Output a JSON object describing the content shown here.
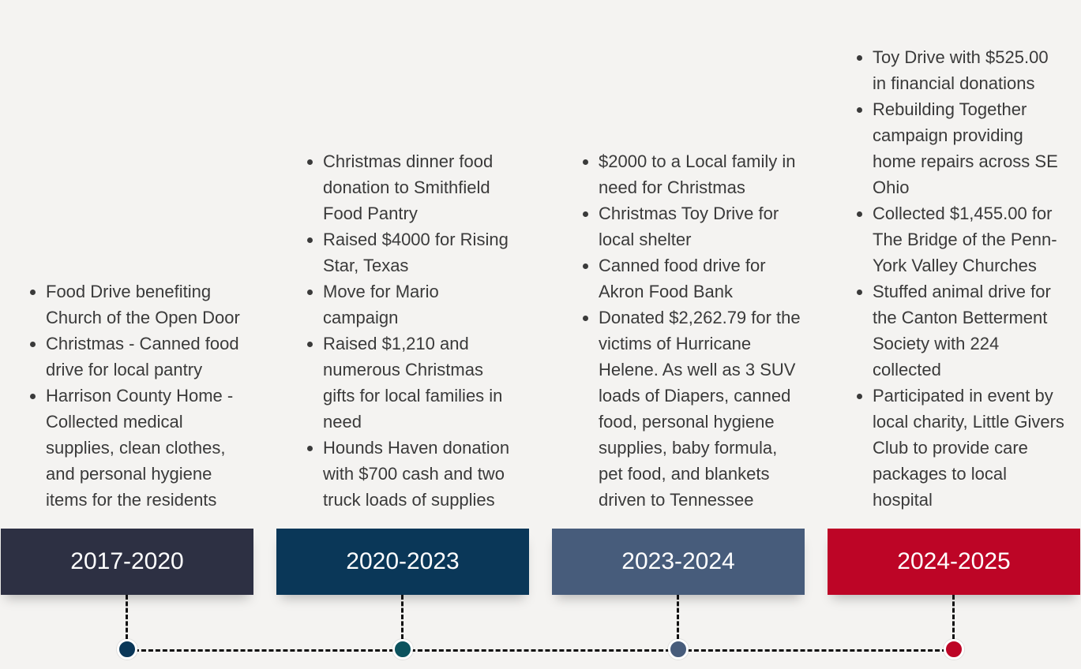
{
  "colors": {
    "period_1": "#2d3043",
    "period_2": "#0a3758",
    "period_3": "#475c7b",
    "period_4": "#bd0526",
    "dot_1": "#0a3758",
    "dot_2": "#0c535e",
    "dot_3": "#475c7b",
    "dot_4": "#bd0526"
  },
  "periods": [
    {
      "label": "2017-2020",
      "items": [
        "Food Drive benefiting Church of the Open Door",
        " Christmas - Canned food drive for local pantry",
        "Harrison County Home - Collected medical supplies, clean clothes, and personal hygiene items for the residents"
      ]
    },
    {
      "label": "2020-2023",
      "items": [
        "Christmas dinner food donation to Smithfield Food Pantry",
        "Raised $4000 for Rising Star, Texas",
        "Move for Mario campaign",
        "Raised $1,210 and numerous Christmas gifts for local families in need",
        "Hounds Haven donation with $700 cash and two truck loads of supplies"
      ]
    },
    {
      "label": "2023-2024",
      "items": [
        "$2000 to a Local family in need for Christmas",
        "Christmas Toy Drive for local shelter",
        "Canned food drive for Akron Food Bank",
        "Donated $2,262.79 for the victims of Hurricane Helene. As well as 3 SUV loads of Diapers, canned food, personal hygiene supplies, baby formula, pet food, and blankets driven to Tennessee"
      ]
    },
    {
      "label": "2024-2025",
      "items": [
        "Toy Drive with $525.00 in financial donations",
        "Rebuilding Together campaign providing home repairs across SE Ohio",
        "Collected $1,455.00 for The Bridge of the Penn-York Valley Churches",
        "Stuffed animal drive for the Canton Betterment Society with 224 collected",
        "Participated in event by local charity, Little Givers Club to provide care packages to local hospital"
      ]
    }
  ]
}
